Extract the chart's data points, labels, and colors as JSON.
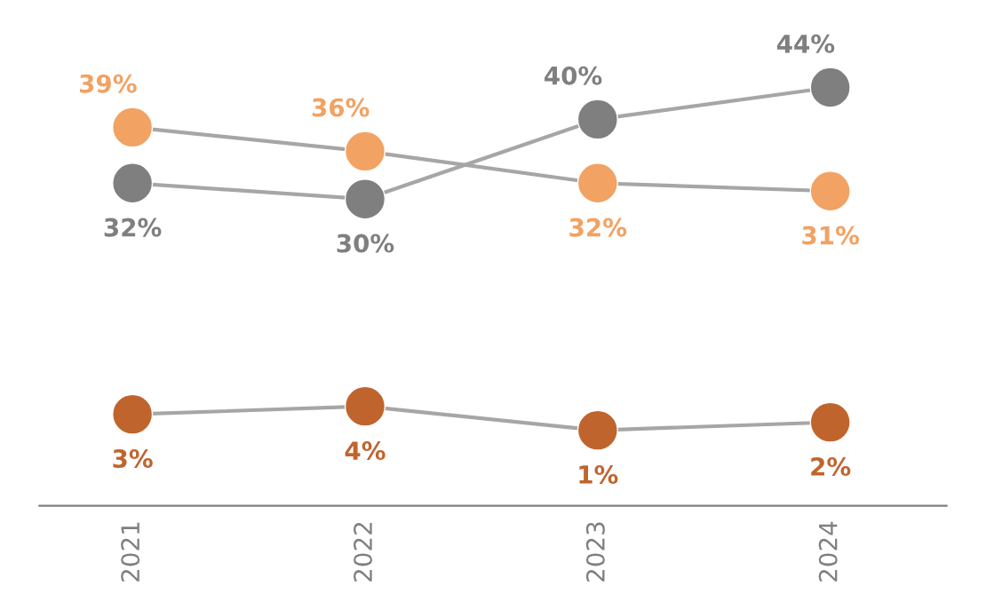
{
  "chart_data": {
    "type": "line",
    "categories": [
      "2021",
      "2022",
      "2023",
      "2024"
    ],
    "marker": "circle",
    "tick_labels": "x",
    "series": [
      {
        "color": "#f2a262",
        "values": [
          39,
          36,
          32,
          31
        ],
        "value_labels": [
          "39%",
          "36%",
          "32%",
          "31%"
        ]
      },
      {
        "color": "#7f7f7f",
        "values": [
          32,
          30,
          40,
          44
        ],
        "value_labels": [
          "32%",
          "30%",
          "40%",
          "44%"
        ]
      },
      {
        "color": "#c0642e",
        "values": [
          3,
          4,
          1,
          2
        ],
        "value_labels": [
          "3%",
          "4%",
          "1%",
          "2%"
        ]
      }
    ]
  }
}
